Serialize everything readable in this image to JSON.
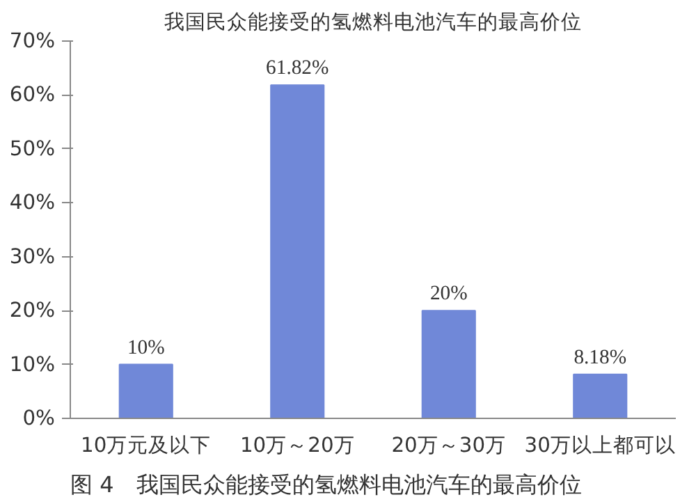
{
  "chart_data": {
    "type": "bar",
    "title": "我国民众能接受的氢燃料电池汽车的最高价位",
    "categories": [
      "10万元及以下",
      "10万～20万",
      "20万～30万",
      "30万以上都可以"
    ],
    "values": [
      10,
      61.82,
      20,
      8.18
    ],
    "value_labels": [
      "10%",
      "61.82%",
      "20%",
      "8.18%"
    ],
    "color": "#7088d8",
    "ylim": [
      0,
      70
    ],
    "yticks": [
      {
        "value": 0,
        "label": "0%"
      },
      {
        "value": 10,
        "label": "10%"
      },
      {
        "value": 20,
        "label": "20%"
      },
      {
        "value": 30,
        "label": "30%"
      },
      {
        "value": 40,
        "label": "40%"
      },
      {
        "value": 50,
        "label": "50%"
      },
      {
        "value": 60,
        "label": "60%"
      },
      {
        "value": 70,
        "label": "70%"
      }
    ],
    "annotations": [
      "图 4　我国民众能接受的氢燃料电池汽车的最高价位"
    ]
  }
}
